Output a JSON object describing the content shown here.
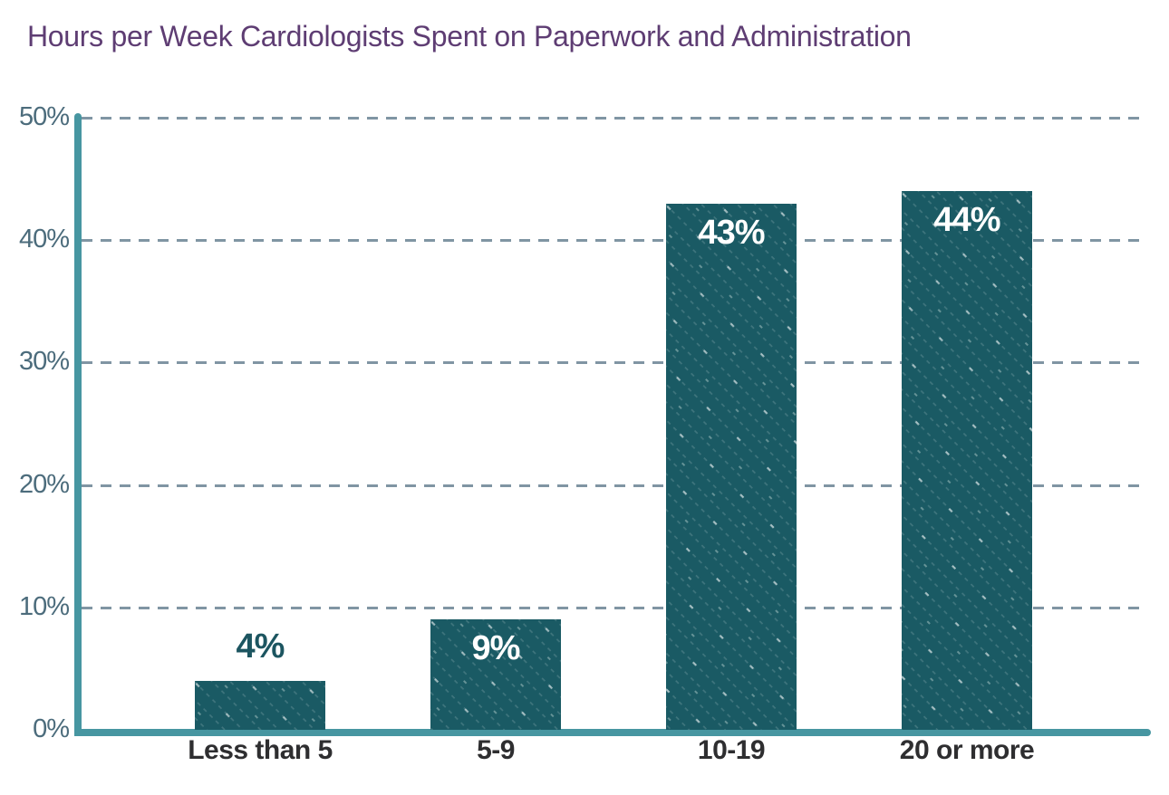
{
  "chart_data": {
    "type": "bar",
    "title": "Hours per Week Cardiologists Spent on Paperwork and Administration",
    "categories": [
      "Less than 5",
      "5-9",
      "10-19",
      "20 or more"
    ],
    "values": [
      4,
      9,
      43,
      44
    ],
    "value_labels": [
      "4%",
      "9%",
      "43%",
      "44%"
    ],
    "xlabel": "",
    "ylabel": "",
    "ylim": [
      0,
      50
    ],
    "ytick_values": [
      0,
      10,
      20,
      30,
      40,
      50
    ],
    "ytick_labels": [
      "0%",
      "10%",
      "20%",
      "30%",
      "40%",
      "50%"
    ],
    "grid": "horizontal-dashed",
    "legend": "none",
    "bar_texture": "diagonal-dashed-lines",
    "colors": {
      "background": "#FFFFFF",
      "bar": "#1A5A64",
      "axis": "#4796A1",
      "gridline": "#8095A3",
      "title": "#5E3D73",
      "ytick": "#4C6C7C",
      "xtick": "#2E2E30",
      "label_inside": "#FFFFFF",
      "label_outside": "#1C5560"
    }
  }
}
